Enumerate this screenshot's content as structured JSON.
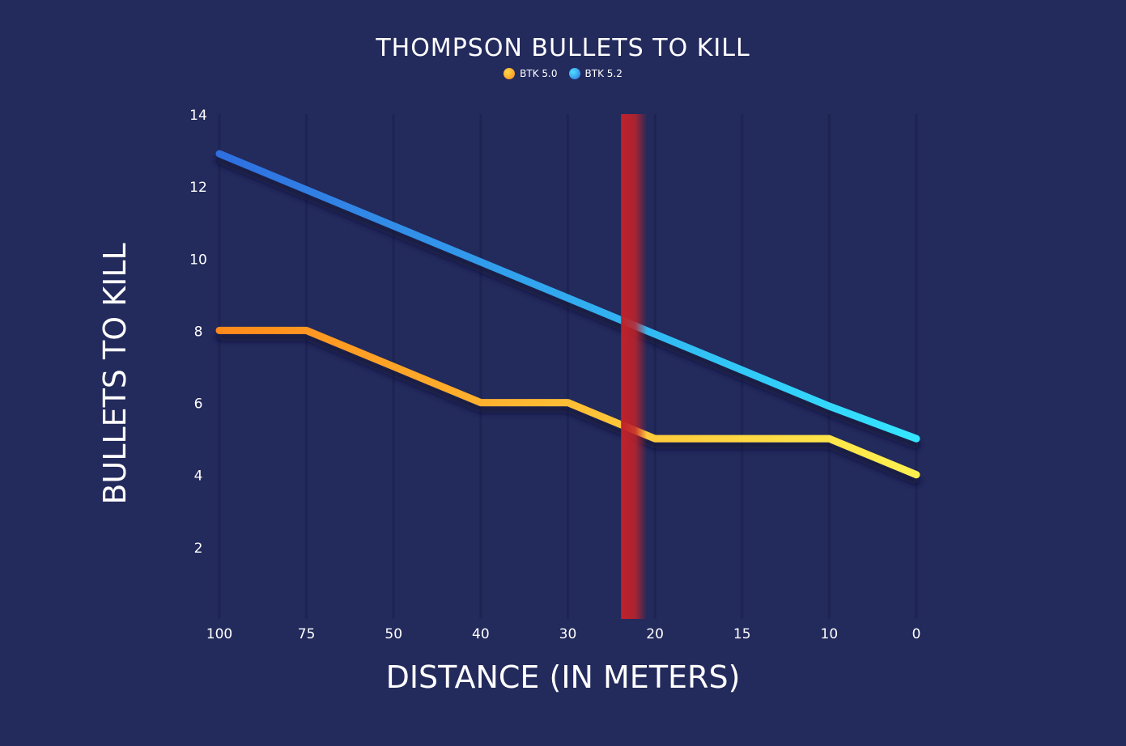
{
  "chart_data": {
    "type": "line",
    "title": "THOMPSON BULLETS TO KILL",
    "xlabel": "DISTANCE (IN METERS)",
    "ylabel": "BULLETS TO KILL",
    "categories": [
      "100",
      "75",
      "50",
      "40",
      "30",
      "20",
      "15",
      "10",
      "0"
    ],
    "series": [
      {
        "name": "BTK 5.0",
        "values": [
          8,
          8,
          7,
          6,
          6,
          5,
          5,
          5,
          4
        ],
        "color_start": "#ff8a1a",
        "color_end": "#fff250"
      },
      {
        "name": "BTK 5.2",
        "values": [
          12.9,
          11.9,
          10.9,
          9.9,
          8.9,
          7.9,
          6.9,
          5.9,
          5.0
        ],
        "color_start": "#2f6fe0",
        "color_end": "#34e6ff"
      }
    ],
    "yticks": [
      2,
      4,
      6,
      8,
      10,
      12,
      14
    ],
    "ylim": [
      0,
      14
    ],
    "grid": "vertical",
    "legend": "top-center",
    "marker_line": {
      "x": 22.5,
      "color": "#c0222a"
    },
    "colors": {
      "background": "#232a5c",
      "grid": "#1d2452",
      "text": "#ffffff"
    }
  }
}
